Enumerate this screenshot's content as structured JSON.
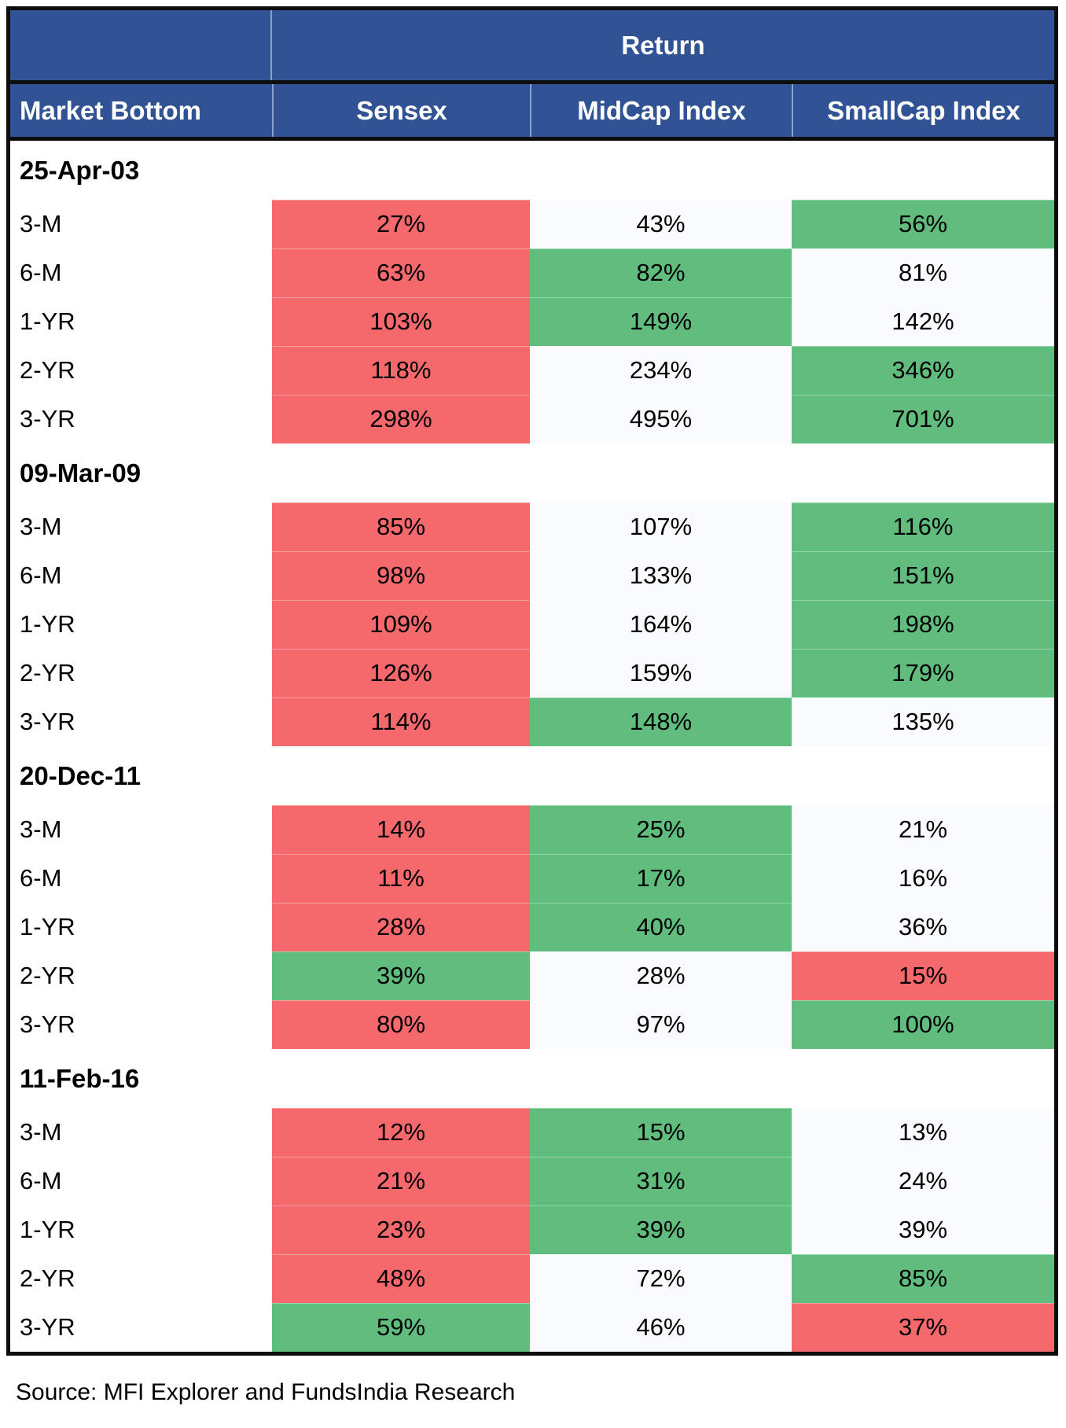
{
  "colors": {
    "header_blue": "#315396",
    "red": "#F5696C",
    "green": "#61BD7D",
    "neutral": "#FAFBFE",
    "border_black": "#0d0d0d",
    "header_text": "#ffffff"
  },
  "chart_data": {
    "type": "table",
    "title": "Return",
    "columns": [
      "Market Bottom",
      "Sensex",
      "MidCap Index",
      "SmallCap Index"
    ],
    "color_coding": {
      "red": "lowest return in row",
      "green": "highest return in row",
      "neutral": "middle return in row"
    },
    "sections": [
      {
        "date": "25-Apr-03",
        "rows": [
          {
            "label": "3-M",
            "cells": [
              {
                "value": "27%",
                "color": "red"
              },
              {
                "value": "43%",
                "color": "neutral"
              },
              {
                "value": "56%",
                "color": "green"
              }
            ]
          },
          {
            "label": "6-M",
            "cells": [
              {
                "value": "63%",
                "color": "red"
              },
              {
                "value": "82%",
                "color": "green"
              },
              {
                "value": "81%",
                "color": "neutral"
              }
            ]
          },
          {
            "label": "1-YR",
            "cells": [
              {
                "value": "103%",
                "color": "red"
              },
              {
                "value": "149%",
                "color": "green"
              },
              {
                "value": "142%",
                "color": "neutral"
              }
            ]
          },
          {
            "label": "2-YR",
            "cells": [
              {
                "value": "118%",
                "color": "red"
              },
              {
                "value": "234%",
                "color": "neutral"
              },
              {
                "value": "346%",
                "color": "green"
              }
            ]
          },
          {
            "label": "3-YR",
            "cells": [
              {
                "value": "298%",
                "color": "red"
              },
              {
                "value": "495%",
                "color": "neutral"
              },
              {
                "value": "701%",
                "color": "green"
              }
            ]
          }
        ]
      },
      {
        "date": "09-Mar-09",
        "rows": [
          {
            "label": "3-M",
            "cells": [
              {
                "value": "85%",
                "color": "red"
              },
              {
                "value": "107%",
                "color": "neutral"
              },
              {
                "value": "116%",
                "color": "green"
              }
            ]
          },
          {
            "label": "6-M",
            "cells": [
              {
                "value": "98%",
                "color": "red"
              },
              {
                "value": "133%",
                "color": "neutral"
              },
              {
                "value": "151%",
                "color": "green"
              }
            ]
          },
          {
            "label": "1-YR",
            "cells": [
              {
                "value": "109%",
                "color": "red"
              },
              {
                "value": "164%",
                "color": "neutral"
              },
              {
                "value": "198%",
                "color": "green"
              }
            ]
          },
          {
            "label": "2-YR",
            "cells": [
              {
                "value": "126%",
                "color": "red"
              },
              {
                "value": "159%",
                "color": "neutral"
              },
              {
                "value": "179%",
                "color": "green"
              }
            ]
          },
          {
            "label": "3-YR",
            "cells": [
              {
                "value": "114%",
                "color": "red"
              },
              {
                "value": "148%",
                "color": "green"
              },
              {
                "value": "135%",
                "color": "neutral"
              }
            ]
          }
        ]
      },
      {
        "date": "20-Dec-11",
        "rows": [
          {
            "label": "3-M",
            "cells": [
              {
                "value": "14%",
                "color": "red"
              },
              {
                "value": "25%",
                "color": "green"
              },
              {
                "value": "21%",
                "color": "neutral"
              }
            ]
          },
          {
            "label": "6-M",
            "cells": [
              {
                "value": "11%",
                "color": "red"
              },
              {
                "value": "17%",
                "color": "green"
              },
              {
                "value": "16%",
                "color": "neutral"
              }
            ]
          },
          {
            "label": "1-YR",
            "cells": [
              {
                "value": "28%",
                "color": "red"
              },
              {
                "value": "40%",
                "color": "green"
              },
              {
                "value": "36%",
                "color": "neutral"
              }
            ]
          },
          {
            "label": "2-YR",
            "cells": [
              {
                "value": "39%",
                "color": "green"
              },
              {
                "value": "28%",
                "color": "neutral"
              },
              {
                "value": "15%",
                "color": "red"
              }
            ]
          },
          {
            "label": "3-YR",
            "cells": [
              {
                "value": "80%",
                "color": "red"
              },
              {
                "value": "97%",
                "color": "neutral"
              },
              {
                "value": "100%",
                "color": "green"
              }
            ]
          }
        ]
      },
      {
        "date": "11-Feb-16",
        "rows": [
          {
            "label": "3-M",
            "cells": [
              {
                "value": "12%",
                "color": "red"
              },
              {
                "value": "15%",
                "color": "green"
              },
              {
                "value": "13%",
                "color": "neutral"
              }
            ]
          },
          {
            "label": "6-M",
            "cells": [
              {
                "value": "21%",
                "color": "red"
              },
              {
                "value": "31%",
                "color": "green"
              },
              {
                "value": "24%",
                "color": "neutral"
              }
            ]
          },
          {
            "label": "1-YR",
            "cells": [
              {
                "value": "23%",
                "color": "red"
              },
              {
                "value": "39%",
                "color": "green"
              },
              {
                "value": "39%",
                "color": "neutral"
              }
            ]
          },
          {
            "label": "2-YR",
            "cells": [
              {
                "value": "48%",
                "color": "red"
              },
              {
                "value": "72%",
                "color": "neutral"
              },
              {
                "value": "85%",
                "color": "green"
              }
            ]
          },
          {
            "label": "3-YR",
            "cells": [
              {
                "value": "59%",
                "color": "green"
              },
              {
                "value": "46%",
                "color": "neutral"
              },
              {
                "value": "37%",
                "color": "red"
              }
            ]
          }
        ]
      }
    ]
  },
  "footer": {
    "source": "Source: MFI Explorer and FundsIndia Research"
  }
}
